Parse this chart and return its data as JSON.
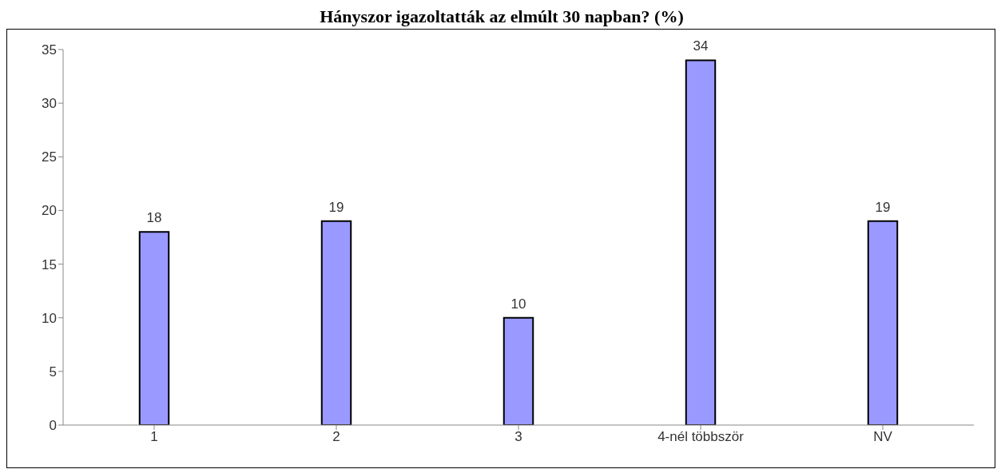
{
  "chart_data": {
    "type": "bar",
    "title": "Hányszor igazoltatták az elmúlt 30 napban? (%)",
    "categories": [
      "1",
      "2",
      "3",
      "4-nél többször",
      "NV"
    ],
    "values": [
      18,
      19,
      10,
      34,
      19
    ],
    "color": "#9999ff",
    "ylim": [
      0,
      35
    ],
    "yticks": [
      0,
      5,
      10,
      15,
      20,
      25,
      30,
      35
    ],
    "grid": false,
    "data_labels": true
  }
}
